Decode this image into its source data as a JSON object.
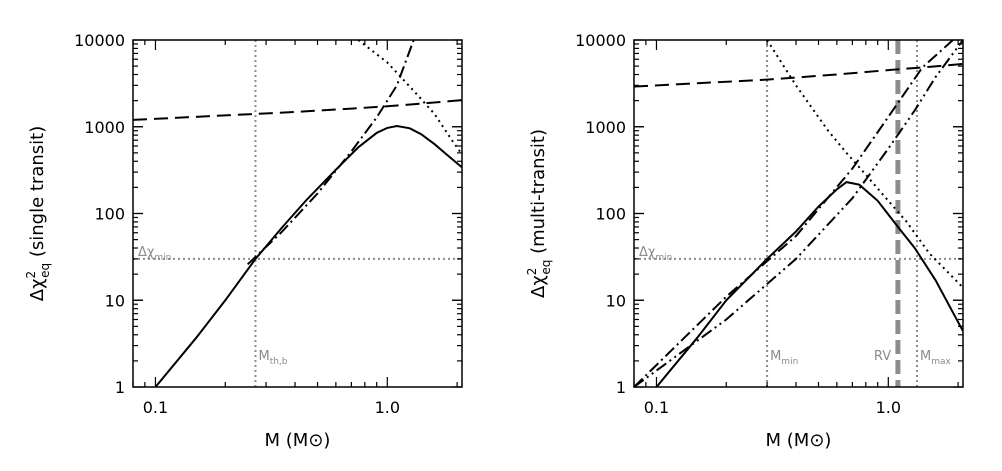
{
  "chart_data": [
    {
      "type": "line",
      "xscale": "log",
      "yscale": "log",
      "xlim": [
        0.08,
        2.1
      ],
      "ylim": [
        1,
        10000
      ],
      "xlabel": "M (M⊙)",
      "ylabel": {
        "main": "Δχ",
        "sup": "2",
        "sub": "eq",
        "tail": " (single transit)"
      },
      "xticks": [
        {
          "v": 0.1,
          "label": "0.1"
        },
        {
          "v": 1.0,
          "label": "1.0"
        }
      ],
      "yticks": [
        {
          "v": 1,
          "label": "1"
        },
        {
          "v": 10,
          "label": "10"
        },
        {
          "v": 100,
          "label": "100"
        },
        {
          "v": 1000,
          "label": "1000"
        },
        {
          "v": 10000,
          "label": "10000"
        }
      ],
      "series": [
        {
          "style": "solid",
          "x": [
            0.1,
            0.15,
            0.2,
            0.27,
            0.35,
            0.45,
            0.6,
            0.75,
            0.9,
            1.0,
            1.1,
            1.25,
            1.4,
            1.6,
            1.8,
            2.1
          ],
          "y": [
            1.0,
            3.7,
            10,
            30,
            68,
            145,
            320,
            580,
            850,
            970,
            1020,
            960,
            820,
            630,
            480,
            340
          ]
        },
        {
          "style": "dashed",
          "x": [
            0.08,
            0.2,
            0.4,
            0.7,
            1.0,
            1.5,
            2.1
          ],
          "y": [
            1200,
            1350,
            1480,
            1620,
            1720,
            1880,
            2030
          ]
        },
        {
          "style": "dashdot",
          "x": [
            0.25,
            0.35,
            0.5,
            0.7,
            0.9,
            1.1,
            1.3
          ],
          "y": [
            26,
            61,
            170,
            520,
            1280,
            3000,
            10000
          ]
        },
        {
          "style": "dotted",
          "x": [
            0.75,
            1.0,
            1.3,
            1.6,
            1.9,
            2.1
          ],
          "y": [
            10000,
            5500,
            2600,
            1400,
            700,
            480
          ]
        }
      ],
      "hlines": [
        {
          "y": 30,
          "label": "Δχ",
          "sub": "min"
        }
      ],
      "vlines": [
        {
          "x": 0.27,
          "style": "dotted",
          "label": "M",
          "sub": "th,b"
        }
      ]
    },
    {
      "type": "line",
      "xscale": "log",
      "yscale": "log",
      "xlim": [
        0.08,
        2.1
      ],
      "ylim": [
        1,
        10000
      ],
      "xlabel": "M (M⊙)",
      "ylabel": {
        "main": "Δχ",
        "sup": "2",
        "sub": "eq",
        "tail": " (multi-transit)"
      },
      "xticks": [
        {
          "v": 0.1,
          "label": "0.1"
        },
        {
          "v": 1.0,
          "label": "1.0"
        }
      ],
      "yticks": [
        {
          "v": 1,
          "label": "1"
        },
        {
          "v": 10,
          "label": "10"
        },
        {
          "v": 100,
          "label": "100"
        },
        {
          "v": 1000,
          "label": "1000"
        },
        {
          "v": 10000,
          "label": "10000"
        }
      ],
      "series": [
        {
          "style": "solid",
          "x": [
            0.1,
            0.15,
            0.2,
            0.3,
            0.4,
            0.5,
            0.6,
            0.66,
            0.75,
            0.9,
            1.1,
            1.3,
            1.6,
            2.1
          ],
          "y": [
            1.0,
            3.7,
            10,
            30,
            62,
            120,
            190,
            230,
            215,
            140,
            70,
            40,
            17,
            4.4
          ]
        },
        {
          "style": "dashed",
          "x": [
            0.08,
            0.3,
            0.6,
            1.0,
            1.5,
            2.1
          ],
          "y": [
            2900,
            3500,
            4000,
            4500,
            4900,
            5300
          ]
        },
        {
          "style": "dashdot",
          "x": [
            0.08,
            0.2,
            0.4,
            0.7,
            1.0,
            1.4,
            1.9
          ],
          "y": [
            1.0,
            11,
            55,
            330,
            1300,
            4800,
            10000
          ]
        },
        {
          "style": "dashdotdot",
          "x": [
            0.08,
            0.2,
            0.4,
            0.7,
            1.0,
            1.3,
            1.6,
            2.1
          ],
          "y": [
            1.0,
            6.0,
            30,
            150,
            560,
            1540,
            3750,
            10000
          ]
        },
        {
          "style": "dotted",
          "x": [
            0.3,
            0.4,
            0.55,
            0.66,
            0.8,
            1.0,
            1.2,
            1.5,
            2.1
          ],
          "y": [
            10000,
            3000,
            900,
            500,
            280,
            140,
            80,
            35,
            14
          ]
        }
      ],
      "hlines": [
        {
          "y": 30,
          "label": "Δχ",
          "sub": "min"
        }
      ],
      "vlines": [
        {
          "x": 0.3,
          "style": "dotted",
          "label": "M",
          "sub": "min"
        },
        {
          "x": 1.1,
          "style": "thickdashed",
          "label": "RV",
          "sub": ""
        },
        {
          "x": 1.33,
          "style": "dotted",
          "label": "M",
          "sub": "max"
        }
      ]
    }
  ]
}
